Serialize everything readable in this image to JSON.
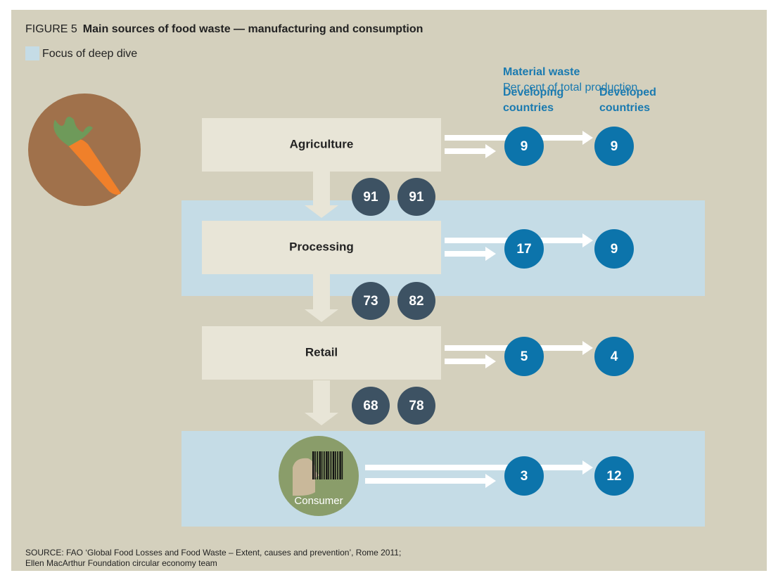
{
  "figure_label": "FIGURE 5",
  "title": "Main sources of food waste — manufacturing and consumption",
  "legend": "Focus of deep dive",
  "header": {
    "title": "Material waste",
    "subtitle": "Per cent of total production",
    "developing": [
      "Developing",
      "countries"
    ],
    "developed": [
      "Developed",
      "countries"
    ]
  },
  "stages": [
    {
      "label": "Agriculture",
      "developing": 9,
      "developed": 9
    },
    {
      "label": "Processing",
      "developing": 17,
      "developed": 9
    },
    {
      "label": "Retail",
      "developing": 5,
      "developed": 4
    },
    {
      "label": "Consumer",
      "developing": 3,
      "developed": 12
    }
  ],
  "flows": [
    {
      "developing": 91,
      "developed": 91
    },
    {
      "developing": 73,
      "developed": 82
    },
    {
      "developing": 68,
      "developed": 78
    }
  ],
  "source": [
    "SOURCE: FAO ‘Global Food Losses and Food Waste – Extent, causes and prevention’, Rome 2011;",
    "Ellen MacArthur Foundation circular economy team"
  ]
}
